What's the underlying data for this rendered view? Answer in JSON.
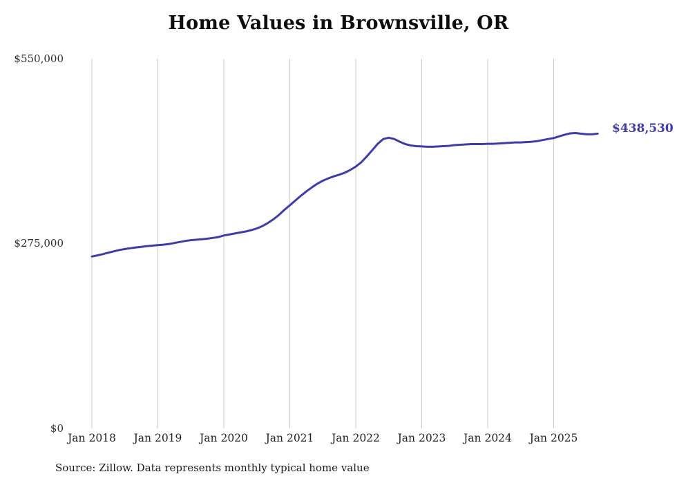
{
  "page": {
    "background": "#ffffff"
  },
  "chart_data": {
    "type": "line",
    "title": "Home Values in Brownsville, OR",
    "series_name": "Typical home value",
    "start_month": "2018-01",
    "frequency": "monthly",
    "values": [
      255800,
      257400,
      259300,
      261400,
      263500,
      265400,
      266900,
      268100,
      269200,
      270200,
      271100,
      271900,
      272600,
      273400,
      274400,
      275800,
      277400,
      278900,
      280000,
      280800,
      281500,
      282300,
      283400,
      284700,
      287000,
      288500,
      290000,
      291500,
      293000,
      295000,
      297500,
      301000,
      305500,
      311000,
      317500,
      325000,
      332000,
      339000,
      346000,
      352500,
      358500,
      364000,
      368500,
      372000,
      375000,
      377500,
      380500,
      384500,
      389500,
      396000,
      404500,
      414000,
      423500,
      430500,
      432500,
      430500,
      426500,
      423000,
      421000,
      420000,
      419500,
      419000,
      419000,
      419500,
      420000,
      420500,
      421500,
      422000,
      422500,
      423000,
      423000,
      423000,
      423500,
      423500,
      424000,
      424500,
      425000,
      425500,
      425500,
      426000,
      426500,
      427500,
      429000,
      430500,
      432000,
      434500,
      437000,
      439000,
      439500,
      438500,
      437500,
      437500,
      438530
    ],
    "x_tick_labels": [
      "Jan 2018",
      "Jan 2019",
      "Jan 2020",
      "Jan 2021",
      "Jan 2022",
      "Jan 2023",
      "Jan 2024",
      "Jan 2025"
    ],
    "y_ticks": [
      {
        "value": 550000,
        "label": "$550,000"
      },
      {
        "value": 275000,
        "label": "$275,000"
      },
      {
        "value": 0,
        "label": "$0"
      }
    ],
    "ylim": [
      0,
      550000
    ],
    "grid": "vertical-only",
    "legend": "none",
    "end_label": "$438,530",
    "end_value": 438530,
    "line_color": "#3d3bb3",
    "gridline_color": "#cccccc",
    "source": "Source: Zillow. Data represents monthly typical home value"
  }
}
